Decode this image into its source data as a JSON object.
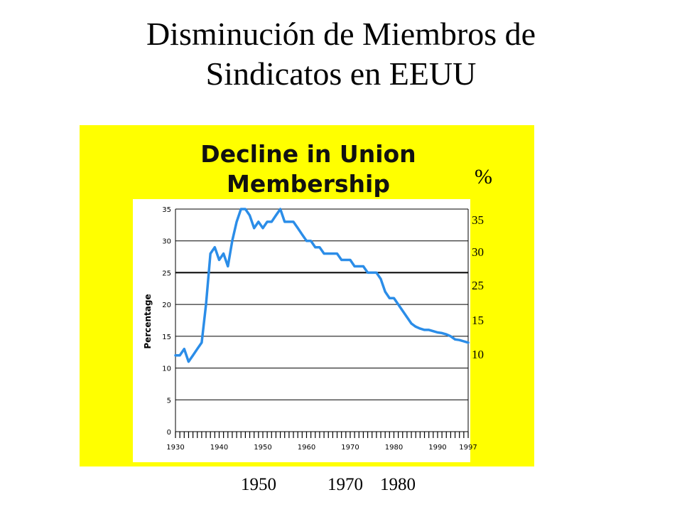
{
  "slide": {
    "title_line1": "Disminución de Miembros de",
    "title_line2": "Sindicatos en EEUU"
  },
  "colors": {
    "panel": "#ffff00",
    "line": "#2b8de8",
    "grid": "#000000"
  },
  "chart_data": {
    "type": "line",
    "title_line1": "Decline in Union",
    "title_line2": "Membership",
    "ylabel": "Percentage",
    "xlim": [
      1930,
      1997
    ],
    "ylim": [
      0,
      35
    ],
    "yticks": [
      0,
      5,
      10,
      15,
      20,
      25,
      30,
      35
    ],
    "xtick_labels": [
      "1930",
      "1940",
      "1950",
      "1960",
      "1970",
      "1980",
      "1990",
      "1997"
    ],
    "grid": true,
    "series": [
      {
        "x": [
          1930,
          1931,
          1932,
          1933,
          1934,
          1935,
          1936,
          1937,
          1938,
          1939,
          1940,
          1941,
          1942,
          1943,
          1944,
          1945,
          1946,
          1947,
          1948,
          1949,
          1950,
          1951,
          1952,
          1953,
          1954,
          1955,
          1956,
          1957,
          1958,
          1959,
          1960,
          1961,
          1962,
          1963,
          1964,
          1965,
          1966,
          1967,
          1968,
          1969,
          1970,
          1971,
          1972,
          1973,
          1974,
          1975,
          1976,
          1977,
          1978,
          1979,
          1980,
          1981,
          1982,
          1983,
          1984,
          1985,
          1986,
          1987,
          1988,
          1989,
          1990,
          1991,
          1992,
          1993,
          1994,
          1995,
          1996,
          1997
        ],
        "values": [
          12,
          12,
          13,
          11,
          12,
          13,
          14,
          20,
          28,
          29,
          27,
          28,
          26,
          30,
          33,
          35,
          35,
          34,
          32,
          33,
          32,
          33,
          33,
          34,
          35,
          33,
          33,
          33,
          32,
          31,
          30,
          30,
          29,
          29,
          28,
          28,
          28,
          28,
          27,
          27,
          27,
          26,
          26,
          26,
          25,
          25,
          25,
          24,
          22,
          21,
          21,
          20,
          19,
          18,
          17,
          16.5,
          16.2,
          16,
          16,
          15.8,
          15.6,
          15.5,
          15.3,
          15,
          14.5,
          14.4,
          14.2,
          14
        ]
      }
    ],
    "overlay": {
      "unit_label": "%",
      "side_ticks": [
        "35",
        "30",
        "25",
        "15",
        "10"
      ],
      "bottom_years": [
        "1950",
        "1970",
        "1980"
      ]
    }
  }
}
